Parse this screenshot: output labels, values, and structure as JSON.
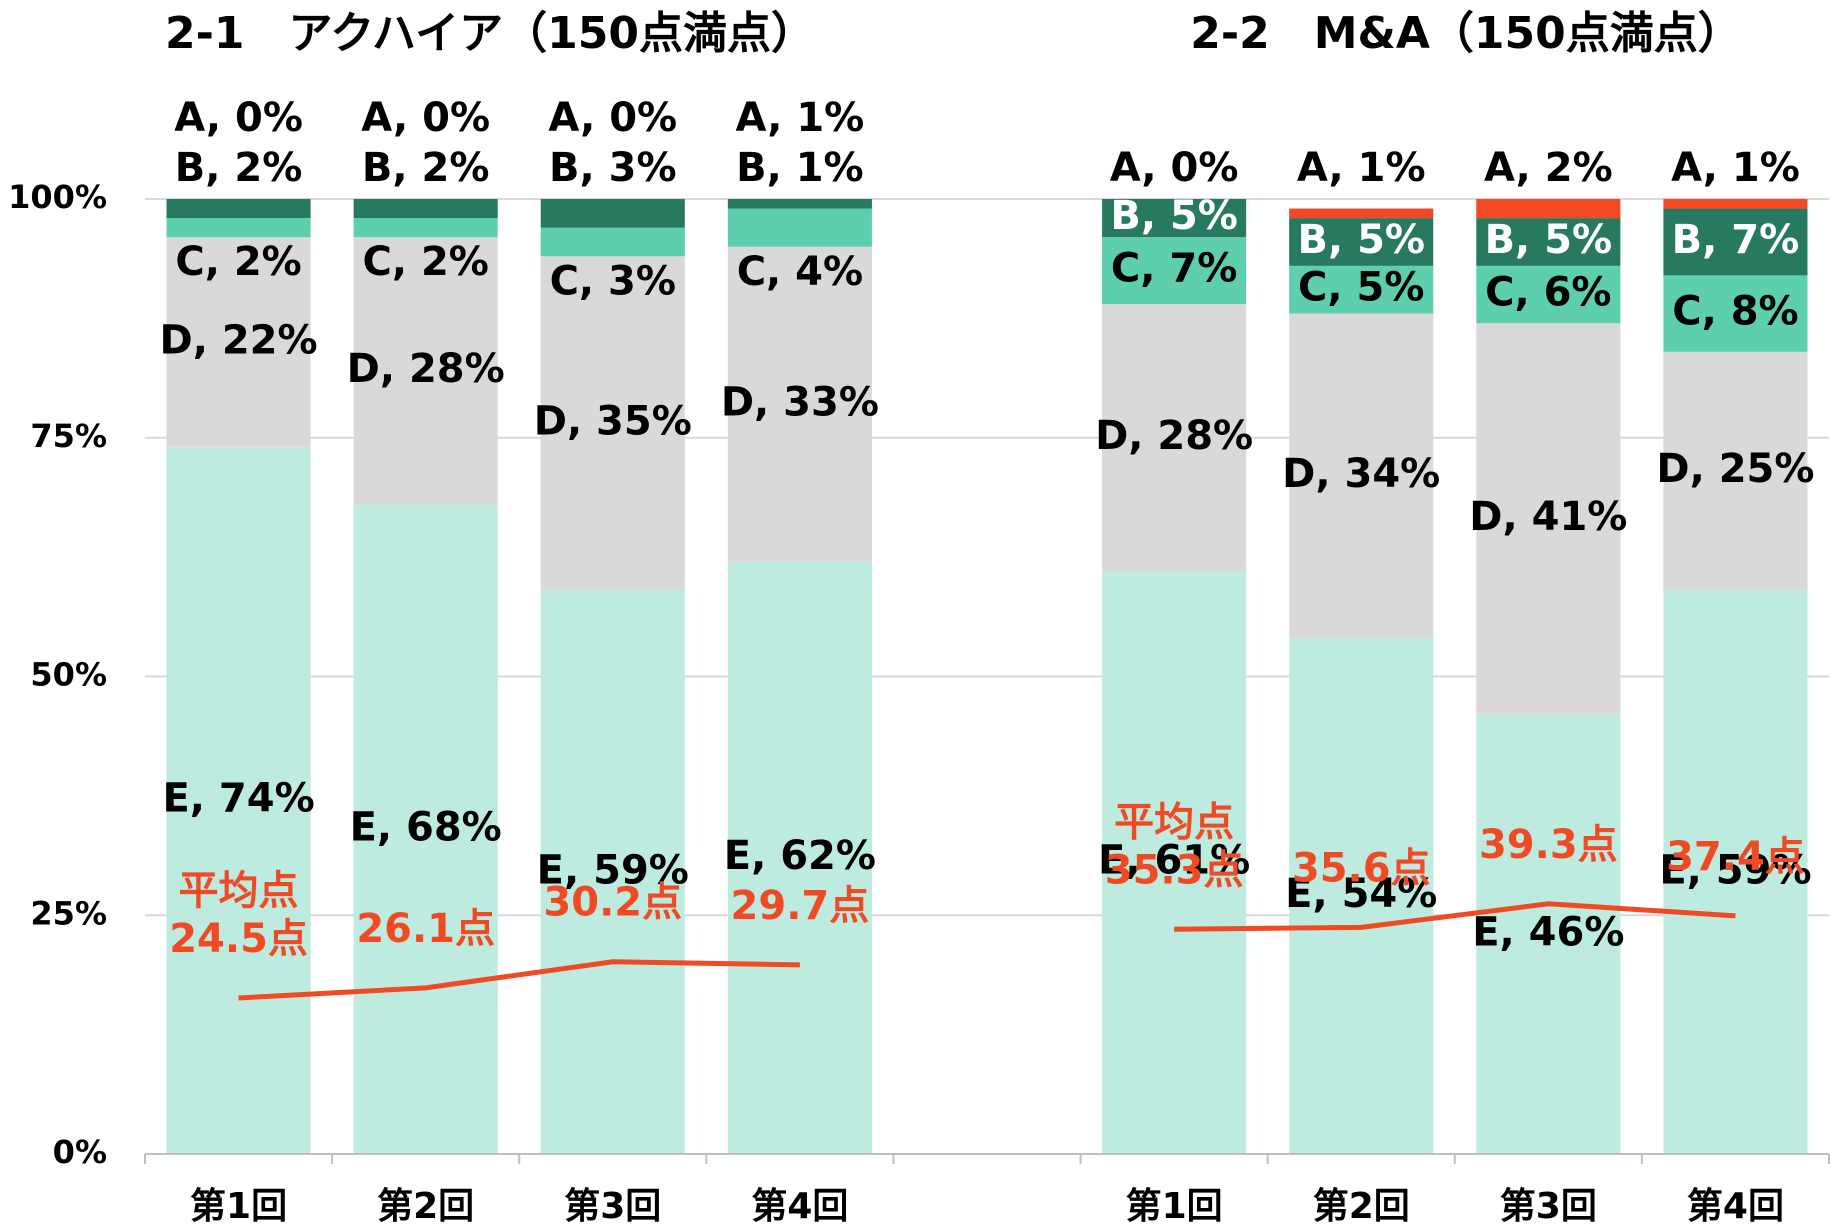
{
  "chart_data": {
    "type": "stacked_bar_line",
    "titles": [
      "2-1　アクハイア（150点満点）",
      "2-2　M&A（150点満点）"
    ],
    "categories": [
      "第1回",
      "第2回",
      "第3回",
      "第4回",
      null,
      "第1回",
      "第2回",
      "第3回",
      "第4回"
    ],
    "series": [
      {
        "name": "E",
        "color": "#bdebdf",
        "label_color": "#000000",
        "values": [
          74,
          68,
          59,
          62,
          null,
          61,
          54,
          46,
          59
        ],
        "value_labels": [
          "E, 74%",
          "E, 68%",
          "E, 59%",
          "E, 62%",
          null,
          "E, 61%",
          "E, 54%",
          "E, 46%",
          "E, 59%"
        ]
      },
      {
        "name": "D",
        "color": "#d9d9d9",
        "label_color": "#000000",
        "values": [
          22,
          28,
          35,
          33,
          null,
          28,
          34,
          41,
          25
        ],
        "value_labels": [
          "D, 22%",
          "D, 28%",
          "D, 35%",
          "D, 33%",
          null,
          "D, 28%",
          "D, 34%",
          "D, 41%",
          "D, 25%"
        ]
      },
      {
        "name": "C",
        "color": "#5dcfaf",
        "label_color": "#000000",
        "values": [
          2,
          2,
          3,
          4,
          null,
          7,
          5,
          6,
          8
        ],
        "value_labels": [
          "C, 2%",
          "C, 2%",
          "C, 3%",
          "C, 4%",
          null,
          "C, 7%",
          "C, 5%",
          "C, 6%",
          "C, 8%"
        ]
      },
      {
        "name": "B",
        "color": "#277a5f",
        "label_color": "#ffffff",
        "values": [
          2,
          2,
          3,
          1,
          null,
          5,
          5,
          5,
          7
        ],
        "value_labels": [
          "B, 2%",
          "B, 2%",
          "B, 3%",
          "B, 1%",
          null,
          "B, 5%",
          "B, 5%",
          "B, 5%",
          "B, 7%"
        ]
      },
      {
        "name": "A",
        "color": "#f04a24",
        "label_color": "#000000",
        "values": [
          0,
          0,
          0,
          1,
          null,
          0,
          1,
          2,
          1
        ],
        "value_labels": [
          "A, 0%",
          "A, 0%",
          "A, 0%",
          "A, 1%",
          null,
          "A, 0%",
          "A, 1%",
          "A, 2%",
          "A, 1%"
        ]
      }
    ],
    "line": {
      "name": "平均点",
      "color": "#f04a24",
      "axis": "y2",
      "values": [
        24.5,
        26.1,
        30.2,
        29.7,
        null,
        35.3,
        35.6,
        39.3,
        37.4
      ],
      "value_labels": [
        "24.5点",
        "26.1点",
        "30.2点",
        "29.7点",
        null,
        "35.3点",
        "35.6点",
        "39.3点",
        "37.4点"
      ]
    },
    "ylim": [
      0,
      100
    ],
    "yticks": [
      {
        "value": 0,
        "label": "0%"
      },
      {
        "value": 25,
        "label": "25%"
      },
      {
        "value": 50,
        "label": "50%"
      },
      {
        "value": 75,
        "label": "75%"
      },
      {
        "value": 100,
        "label": "100%"
      }
    ],
    "y2lim": [
      0,
      150
    ],
    "grid": true
  }
}
